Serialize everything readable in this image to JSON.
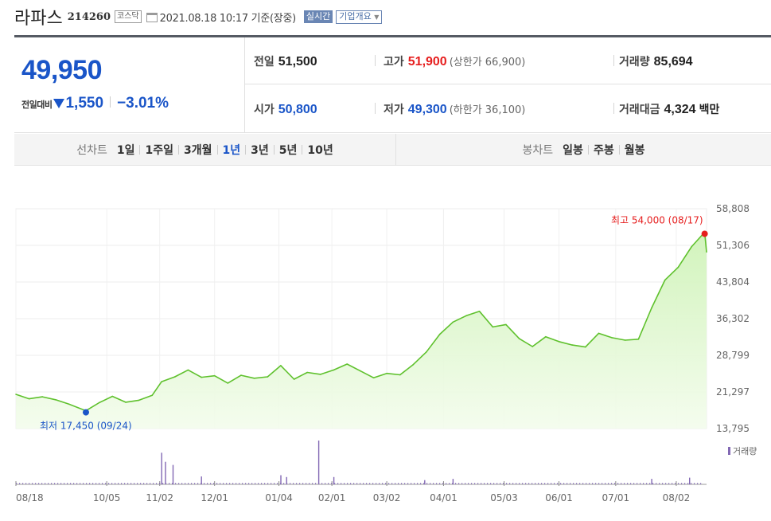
{
  "stock": {
    "name": "라파스",
    "code": "214260",
    "market_badge": "코스닥",
    "datetime": "2021.08.18 10:17 기준(장중)",
    "live_badge": "실시간",
    "overview_label": "기업개요",
    "overview_icon": "caret-down-icon"
  },
  "quote": {
    "price": "49,950",
    "change_label": "전일대비",
    "change_direction": "down",
    "change": "1,550",
    "change_pct": "−3.01%",
    "stats": {
      "prev_close_label": "전일",
      "prev_close": "51,500",
      "high_label": "고가",
      "high": "51,900",
      "upper_limit": "(상한가 66,900)",
      "volume_label": "거래량",
      "volume": "85,694",
      "open_label": "시가",
      "open": "50,800",
      "low_label": "저가",
      "low": "49,300",
      "lower_limit": "(하한가 36,100)",
      "trade_value_label": "거래대금",
      "trade_value": "4,324",
      "trade_value_unit": "백만"
    }
  },
  "periods": {
    "line_label": "선차트",
    "line_items": [
      "1일",
      "1주일",
      "3개월",
      "1년",
      "3년",
      "5년",
      "10년"
    ],
    "active": "1년",
    "candle_label": "봉차트",
    "candle_items": [
      "일봉",
      "주봉",
      "월봉"
    ]
  },
  "colors": {
    "up": "#e61e1e",
    "down": "#1a55c8",
    "line": "#5fc12d",
    "volume": "#8268b4"
  },
  "chart_data": {
    "type": "area",
    "ylim": [
      13795,
      58808
    ],
    "y_ticks": [
      "58,808",
      "51,306",
      "43,804",
      "36,302",
      "28,799",
      "21,297",
      "13,795"
    ],
    "x_ticks": [
      "08/18",
      "10/05",
      "11/02",
      "12/01",
      "01/04",
      "02/01",
      "03/02",
      "04/01",
      "05/03",
      "06/01",
      "07/01",
      "08/02"
    ],
    "x_range": [
      "2020-08-18",
      "2021-08-18"
    ],
    "max_label": "최고 54,000 (08/17)",
    "min_label": "최저 17,450 (09/24)",
    "volume_legend": "거래량",
    "series": [
      {
        "x": [
          "2020-08-18",
          "2020-08-25",
          "2020-09-01",
          "2020-09-08",
          "2020-09-15",
          "2020-09-24",
          "2020-10-01",
          "2020-10-08",
          "2020-10-15",
          "2020-10-22",
          "2020-10-29",
          "2020-11-03",
          "2020-11-10",
          "2020-11-17",
          "2020-11-24",
          "2020-12-01",
          "2020-12-08",
          "2020-12-15",
          "2020-12-22",
          "2020-12-29",
          "2021-01-05",
          "2021-01-12",
          "2021-01-19",
          "2021-01-26",
          "2021-02-02",
          "2021-02-09",
          "2021-02-16",
          "2021-02-23",
          "2021-03-02",
          "2021-03-09",
          "2021-03-16",
          "2021-03-23",
          "2021-03-30",
          "2021-04-06",
          "2021-04-13",
          "2021-04-20",
          "2021-04-27",
          "2021-05-04",
          "2021-05-11",
          "2021-05-18",
          "2021-05-25",
          "2021-06-01",
          "2021-06-08",
          "2021-06-15",
          "2021-06-22",
          "2021-06-29",
          "2021-07-06",
          "2021-07-13",
          "2021-07-20",
          "2021-07-27",
          "2021-08-03",
          "2021-08-10",
          "2021-08-17",
          "2021-08-18"
        ],
        "y": [
          20800,
          19900,
          20300,
          19700,
          18800,
          17450,
          19100,
          20400,
          19200,
          19600,
          20600,
          23400,
          24400,
          25800,
          24300,
          24600,
          23100,
          24700,
          24100,
          24400,
          26700,
          23900,
          25300,
          24900,
          25800,
          27000,
          25600,
          24200,
          25100,
          24800,
          26900,
          29500,
          33100,
          35600,
          36900,
          37800,
          34600,
          35100,
          32200,
          30600,
          32600,
          31600,
          30900,
          30500,
          33300,
          32400,
          31900,
          32100,
          38500,
          44200,
          46800,
          51000,
          54000,
          49950
        ]
      }
    ],
    "volume": {
      "x": [
        "2020-11-03",
        "2020-11-05",
        "2020-11-09",
        "2020-11-24",
        "2021-01-05",
        "2021-01-08",
        "2021-01-25",
        "2021-02-02",
        "2021-03-22",
        "2021-04-06",
        "2021-07-20",
        "2021-08-09"
      ],
      "values": [
        520000,
        370000,
        320000,
        130000,
        150000,
        120000,
        720000,
        120000,
        70000,
        90000,
        90000,
        110000
      ]
    }
  }
}
